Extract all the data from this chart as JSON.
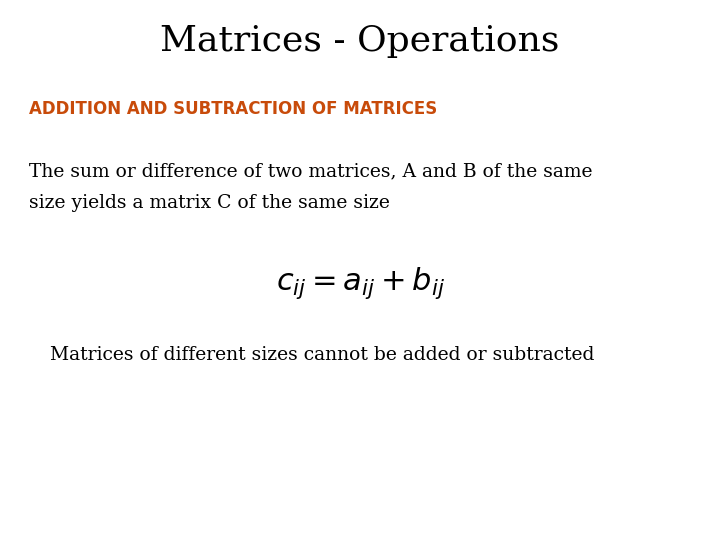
{
  "title": "Matrices - Operations",
  "subtitle": "ADDITION AND SUBTRACTION OF MATRICES",
  "subtitle_color": "#C84B0A",
  "body_text_line1": "The sum or difference of two matrices, A and B of the same",
  "body_text_line2": "size yields a matrix C of the same size",
  "formula": "$c_{ij} = a_{ij} + b_{ij}$",
  "footer_text": "Matrices of different sizes cannot be added or subtracted",
  "background_color": "#ffffff",
  "title_fontsize": 26,
  "subtitle_fontsize": 12,
  "body_fontsize": 13.5,
  "formula_fontsize": 22,
  "footer_fontsize": 13.5,
  "title_color": "#000000",
  "body_color": "#000000",
  "footer_color": "#000000"
}
